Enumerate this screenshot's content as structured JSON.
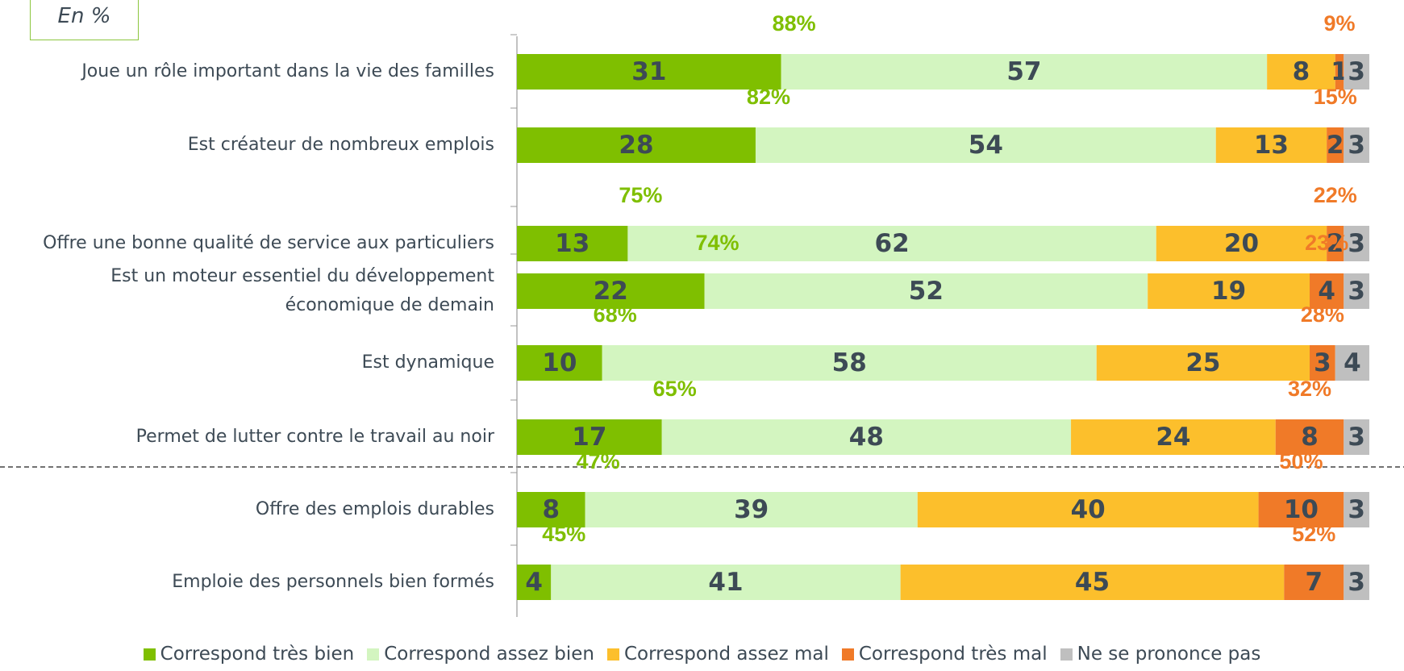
{
  "chart_data": {
    "type": "stacked_barh",
    "subtitle": "En %",
    "categories": [
      "Joue un rôle important dans la vie des familles",
      "Est créateur de nombreux emplois",
      "Offre une bonne qualité de service aux particuliers",
      "Est un moteur essentiel du développement\néconomique de demain",
      "Est dynamique",
      "Permet de lutter contre le travail au noir",
      "Offre des emplois durables",
      "Emploie des personnels bien formés"
    ],
    "series": [
      {
        "name": "Correspond très bien",
        "color": "#7fbf00",
        "values": [
          31,
          28,
          13,
          22,
          10,
          17,
          8,
          4
        ]
      },
      {
        "name": "Correspond assez bien",
        "color": "#d3f5c0",
        "values": [
          57,
          54,
          62,
          52,
          58,
          48,
          39,
          41
        ]
      },
      {
        "name": "Correspond assez mal",
        "color": "#fcbf2c",
        "values": [
          8,
          13,
          20,
          19,
          25,
          24,
          40,
          45
        ]
      },
      {
        "name": "Correspond très mal",
        "color": "#f07a28",
        "values": [
          1,
          2,
          2,
          4,
          3,
          8,
          10,
          7
        ]
      },
      {
        "name": "Ne se prononce pas",
        "color": "#bfbfbf",
        "values": [
          3,
          3,
          3,
          3,
          4,
          3,
          3,
          3
        ]
      }
    ],
    "positive_totals": {
      "color": "#7fbf00",
      "values": [
        88,
        82,
        75,
        74,
        68,
        65,
        47,
        45
      ],
      "value_labels": [
        "88%",
        "82%",
        "75%",
        "74%",
        "68%",
        "65%",
        "47%",
        "45%"
      ]
    },
    "negative_totals": {
      "color": "#f07a28",
      "values": [
        9,
        15,
        22,
        23,
        28,
        32,
        50,
        52
      ],
      "value_labels": [
        "9%",
        "15%",
        "22%",
        "23%",
        "28%",
        "32%",
        "50%",
        "52%"
      ]
    },
    "xlim": [
      0,
      100
    ]
  }
}
